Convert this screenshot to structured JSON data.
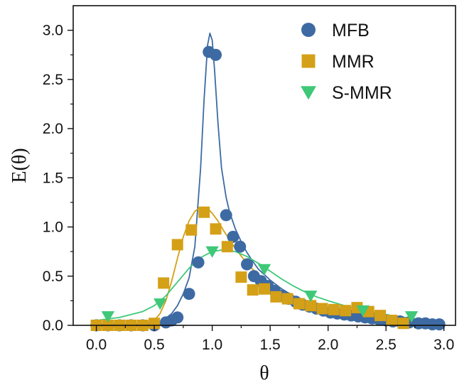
{
  "chart_data": {
    "type": "scatter",
    "title": "",
    "xlabel": "θ",
    "ylabel": "E(θ)",
    "xlim": [
      -0.2,
      3.1
    ],
    "ylim": [
      0,
      3.25
    ],
    "xticks": [
      0.0,
      0.5,
      1.0,
      1.5,
      2.0,
      2.5,
      3.0
    ],
    "yticks": [
      0.0,
      0.5,
      1.0,
      1.5,
      2.0,
      2.5,
      3.0
    ],
    "xtick_labels": [
      "0.0",
      "0.5",
      "1.0",
      "1.5",
      "2.0",
      "2.5",
      "3.0"
    ],
    "ytick_labels": [
      "0.0",
      "0.5",
      "1.0",
      "1.5",
      "2.0",
      "2.5",
      "3.0"
    ],
    "grid": false,
    "legend_position": "top-right",
    "series": [
      {
        "name": "MFB",
        "marker": "circle",
        "color": "#3d6aa3",
        "x": [
          0.0,
          0.1,
          0.2,
          0.3,
          0.4,
          0.5,
          0.6,
          0.65,
          0.7,
          0.8,
          0.88,
          0.97,
          1.03,
          1.12,
          1.18,
          1.24,
          1.3,
          1.36,
          1.42,
          1.48,
          1.54,
          1.6,
          1.66,
          1.72,
          1.78,
          1.84,
          1.9,
          1.96,
          2.02,
          2.08,
          2.14,
          2.2,
          2.26,
          2.32,
          2.38,
          2.44,
          2.5,
          2.56,
          2.62,
          2.7,
          2.78,
          2.84,
          2.9,
          2.96
        ],
        "y": [
          0.0,
          0.0,
          0.0,
          0.0,
          0.0,
          0.0,
          0.03,
          0.05,
          0.08,
          0.32,
          0.64,
          2.78,
          2.75,
          1.12,
          0.9,
          0.8,
          0.62,
          0.5,
          0.45,
          0.4,
          0.35,
          0.3,
          0.27,
          0.24,
          0.21,
          0.19,
          0.17,
          0.15,
          0.13,
          0.12,
          0.11,
          0.1,
          0.09,
          0.08,
          0.07,
          0.06,
          0.05,
          0.04,
          0.04,
          0.03,
          0.02,
          0.02,
          0.01,
          0.01
        ]
      },
      {
        "name": "MMR",
        "marker": "square",
        "color": "#d4a017",
        "x": [
          0.0,
          0.1,
          0.2,
          0.3,
          0.4,
          0.5,
          0.58,
          0.7,
          0.82,
          0.93,
          1.03,
          1.13,
          1.25,
          1.35,
          1.45,
          1.55,
          1.65,
          1.75,
          1.85,
          1.95,
          2.05,
          2.15,
          2.25,
          2.35,
          2.45,
          2.55,
          2.65
        ],
        "y": [
          0.0,
          0.0,
          0.0,
          0.0,
          0.0,
          0.02,
          0.43,
          0.82,
          0.97,
          1.15,
          0.98,
          0.8,
          0.49,
          0.36,
          0.37,
          0.29,
          0.27,
          0.22,
          0.2,
          0.17,
          0.16,
          0.15,
          0.18,
          0.14,
          0.1,
          0.05,
          0.02
        ]
      },
      {
        "name": "S-MMR",
        "marker": "triangle-down",
        "color": "#3ec878",
        "x": [
          0.1,
          0.55,
          1.0,
          1.45,
          1.85,
          2.3,
          2.72
        ],
        "y": [
          0.09,
          0.22,
          0.75,
          0.57,
          0.3,
          0.15,
          0.09
        ]
      }
    ],
    "fits": [
      {
        "name": "MFB fit",
        "color": "#3d6aa3",
        "x": [
          0.0,
          0.2,
          0.4,
          0.5,
          0.55,
          0.6,
          0.65,
          0.7,
          0.75,
          0.8,
          0.85,
          0.9,
          0.93,
          0.96,
          0.98,
          1.0,
          1.02,
          1.05,
          1.08,
          1.12,
          1.15,
          1.2,
          1.25,
          1.3,
          1.35,
          1.4,
          1.5,
          1.6,
          1.7,
          1.8,
          1.9,
          2.0,
          2.2,
          2.4,
          2.6,
          2.8,
          3.0
        ],
        "y": [
          0.0,
          0.0,
          0.0,
          0.01,
          0.03,
          0.07,
          0.12,
          0.2,
          0.32,
          0.48,
          0.8,
          1.6,
          2.3,
          2.85,
          2.97,
          2.9,
          2.6,
          2.05,
          1.6,
          1.3,
          1.15,
          0.98,
          0.85,
          0.74,
          0.65,
          0.57,
          0.46,
          0.37,
          0.3,
          0.24,
          0.19,
          0.15,
          0.1,
          0.065,
          0.04,
          0.02,
          0.01
        ]
      },
      {
        "name": "MMR fit",
        "color": "#d4a017",
        "x": [
          0.0,
          0.2,
          0.4,
          0.5,
          0.55,
          0.6,
          0.65,
          0.7,
          0.75,
          0.8,
          0.85,
          0.9,
          0.95,
          1.0,
          1.05,
          1.1,
          1.2,
          1.3,
          1.4,
          1.5,
          1.6,
          1.7,
          1.8,
          1.9,
          2.0,
          2.2,
          2.4,
          2.6,
          2.8,
          3.0
        ],
        "y": [
          0.0,
          0.0,
          0.01,
          0.05,
          0.12,
          0.25,
          0.45,
          0.68,
          0.9,
          1.06,
          1.16,
          1.2,
          1.2,
          1.14,
          1.06,
          0.96,
          0.78,
          0.63,
          0.51,
          0.42,
          0.34,
          0.28,
          0.23,
          0.19,
          0.16,
          0.11,
          0.07,
          0.045,
          0.03,
          0.02
        ]
      },
      {
        "name": "S-MMR fit",
        "color": "#3ec878",
        "x": [
          0.0,
          0.2,
          0.4,
          0.5,
          0.6,
          0.7,
          0.8,
          0.9,
          1.0,
          1.1,
          1.2,
          1.3,
          1.4,
          1.5,
          1.6,
          1.7,
          1.8,
          1.9,
          2.0,
          2.2,
          2.4,
          2.6,
          2.8
        ],
        "y": [
          0.05,
          0.08,
          0.14,
          0.2,
          0.3,
          0.44,
          0.58,
          0.69,
          0.75,
          0.77,
          0.75,
          0.7,
          0.63,
          0.55,
          0.47,
          0.4,
          0.34,
          0.29,
          0.25,
          0.18,
          0.13,
          0.09,
          0.06
        ]
      }
    ]
  }
}
